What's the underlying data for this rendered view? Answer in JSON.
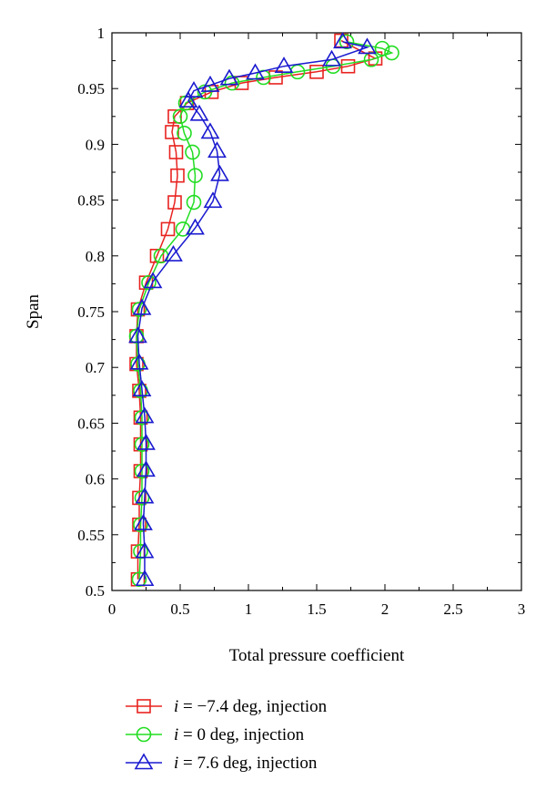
{
  "chart_data": {
    "type": "line",
    "xlabel": "Total pressure coefficient",
    "ylabel": "Span",
    "xlim": [
      0,
      3
    ],
    "ylim": [
      0.5,
      1.0
    ],
    "x_ticks": [
      "0",
      "0.5",
      "1",
      "1.5",
      "2",
      "2.5",
      "3"
    ],
    "y_ticks": [
      "0.5",
      "0.55",
      "0.6",
      "0.65",
      "0.7",
      "0.75",
      "0.8",
      "0.85",
      "0.9",
      "0.95",
      "1"
    ],
    "grid": false,
    "legend_position": "bottom",
    "series": [
      {
        "name_var": "i",
        "name_rest": " = −7.4 deg, injection",
        "color": "#e8231f",
        "marker": "square",
        "points": [
          [
            0.19,
            0.51
          ],
          [
            0.19,
            0.535
          ],
          [
            0.2,
            0.559
          ],
          [
            0.2,
            0.583
          ],
          [
            0.21,
            0.607
          ],
          [
            0.21,
            0.631
          ],
          [
            0.21,
            0.655
          ],
          [
            0.2,
            0.679
          ],
          [
            0.18,
            0.703
          ],
          [
            0.18,
            0.728
          ],
          [
            0.19,
            0.752
          ],
          [
            0.25,
            0.776
          ],
          [
            0.33,
            0.8
          ],
          [
            0.41,
            0.824
          ],
          [
            0.46,
            0.848
          ],
          [
            0.48,
            0.872
          ],
          [
            0.47,
            0.893
          ],
          [
            0.44,
            0.911
          ],
          [
            0.46,
            0.925
          ],
          [
            0.55,
            0.937
          ],
          [
            0.73,
            0.947
          ],
          [
            0.95,
            0.955
          ],
          [
            1.2,
            0.96
          ],
          [
            1.5,
            0.965
          ],
          [
            1.73,
            0.97
          ],
          [
            1.93,
            0.977
          ],
          [
            1.68,
            0.993
          ]
        ]
      },
      {
        "name_var": "i",
        "name_rest": " = 0 deg, injection",
        "color": "#22dd22",
        "marker": "circle",
        "points": [
          [
            0.2,
            0.51
          ],
          [
            0.21,
            0.535
          ],
          [
            0.21,
            0.559
          ],
          [
            0.22,
            0.583
          ],
          [
            0.22,
            0.607
          ],
          [
            0.22,
            0.631
          ],
          [
            0.22,
            0.655
          ],
          [
            0.21,
            0.679
          ],
          [
            0.19,
            0.703
          ],
          [
            0.18,
            0.728
          ],
          [
            0.2,
            0.752
          ],
          [
            0.27,
            0.776
          ],
          [
            0.36,
            0.8
          ],
          [
            0.52,
            0.824
          ],
          [
            0.6,
            0.848
          ],
          [
            0.61,
            0.872
          ],
          [
            0.59,
            0.893
          ],
          [
            0.53,
            0.91
          ],
          [
            0.5,
            0.925
          ],
          [
            0.54,
            0.937
          ],
          [
            0.68,
            0.947
          ],
          [
            0.88,
            0.955
          ],
          [
            1.11,
            0.96
          ],
          [
            1.36,
            0.965
          ],
          [
            1.62,
            0.97
          ],
          [
            1.9,
            0.976
          ],
          [
            2.05,
            0.982
          ],
          [
            1.98,
            0.986
          ],
          [
            1.72,
            0.992
          ]
        ]
      },
      {
        "name_var": "i",
        "name_rest": " = 7.6 deg, injection",
        "color": "#1a1ad0",
        "marker": "triangle",
        "points": [
          [
            0.24,
            0.51
          ],
          [
            0.24,
            0.535
          ],
          [
            0.23,
            0.56
          ],
          [
            0.24,
            0.584
          ],
          [
            0.25,
            0.608
          ],
          [
            0.25,
            0.632
          ],
          [
            0.24,
            0.656
          ],
          [
            0.22,
            0.68
          ],
          [
            0.2,
            0.704
          ],
          [
            0.19,
            0.728
          ],
          [
            0.22,
            0.753
          ],
          [
            0.3,
            0.777
          ],
          [
            0.45,
            0.801
          ],
          [
            0.61,
            0.825
          ],
          [
            0.74,
            0.849
          ],
          [
            0.79,
            0.873
          ],
          [
            0.77,
            0.894
          ],
          [
            0.72,
            0.911
          ],
          [
            0.64,
            0.927
          ],
          [
            0.56,
            0.939
          ],
          [
            0.6,
            0.948
          ],
          [
            0.72,
            0.953
          ],
          [
            0.86,
            0.959
          ],
          [
            1.05,
            0.964
          ],
          [
            1.26,
            0.97
          ],
          [
            1.61,
            0.976
          ],
          [
            1.87,
            0.987
          ],
          [
            1.69,
            0.992
          ]
        ]
      }
    ]
  }
}
